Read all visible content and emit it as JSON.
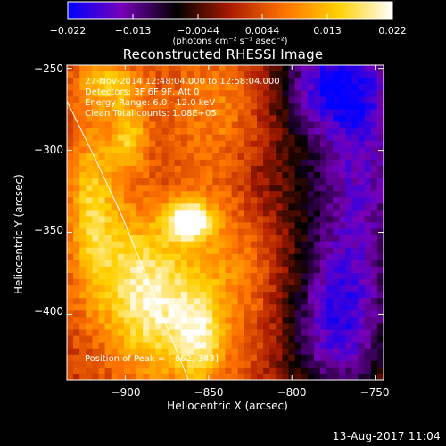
{
  "colorbar": {
    "tick_labels": [
      "−0.022",
      "−0.013",
      "−0.0044",
      "0.0044",
      "0.013",
      "0.022"
    ],
    "unit_label": "(photons cm⁻² s⁻¹ asec⁻²)",
    "range": [
      -0.022,
      0.022
    ],
    "colors": [
      "#0000ff",
      "#7700b8",
      "#000000",
      "#aa1a00",
      "#ff7300",
      "#ffd000",
      "#ffffff"
    ]
  },
  "annotation": {
    "line1": "27-Nov-2014 12:48:04.000 to 12:58:04.000",
    "line2": "Detectors: 3F 6F 9F, Att 0",
    "line3": "Energy Range: 6.0 - 12.0 keV",
    "line4": "Clean    Total counts: 1.08E+05"
  },
  "peak_label": "Position of Peak = [-862,-343]",
  "footer": {
    "date_stamp": "13-Aug-2017 11:04"
  },
  "chart_data": {
    "type": "heatmap",
    "title": "Reconstructed RHESSI Image",
    "xlabel": "Heliocentric X (arcsec)",
    "ylabel": "Heliocentric Y (arcsec)",
    "xlim": [
      -935,
      -745
    ],
    "ylim": [
      -440,
      -248
    ],
    "x_ticks": [
      -900,
      -850,
      -800,
      -750
    ],
    "x_tick_labels": [
      "−900",
      "−850",
      "−800",
      "−750"
    ],
    "y_ticks": [
      -250,
      -300,
      -350,
      -400
    ],
    "y_tick_labels": [
      "−250",
      "−300",
      "−350",
      "−400"
    ],
    "peak": {
      "x": -862,
      "y": -343
    },
    "limb_curve": [
      [
        -935,
        -270
      ],
      [
        -918,
        -305
      ],
      [
        -902,
        -340
      ],
      [
        -888,
        -375
      ],
      [
        -876,
        -405
      ],
      [
        -866,
        -430
      ],
      [
        -862,
        -440
      ]
    ],
    "sources": [
      {
        "x": -862,
        "y": -343,
        "amp": 0.022,
        "sx": 9,
        "sy": 8
      },
      {
        "x": -898,
        "y": -292,
        "amp": 0.012,
        "sx": 8,
        "sy": 14
      },
      {
        "x": -910,
        "y": -260,
        "amp": 0.011,
        "sx": 14,
        "sy": 10
      },
      {
        "x": -920,
        "y": -330,
        "amp": 0.011,
        "sx": 10,
        "sy": 35
      },
      {
        "x": -880,
        "y": -400,
        "amp": 0.013,
        "sx": 20,
        "sy": 30
      },
      {
        "x": -855,
        "y": -415,
        "amp": 0.011,
        "sx": 10,
        "sy": 20
      },
      {
        "x": -900,
        "y": -370,
        "amp": 0.009,
        "sx": 20,
        "sy": 30
      },
      {
        "x": -835,
        "y": -360,
        "amp": 0.007,
        "sx": 25,
        "sy": 45
      },
      {
        "x": -840,
        "y": -270,
        "amp": 0.006,
        "sx": 25,
        "sy": 25
      },
      {
        "x": -760,
        "y": -310,
        "amp": -0.018,
        "sx": 25,
        "sy": 70
      },
      {
        "x": -775,
        "y": -410,
        "amp": -0.016,
        "sx": 22,
        "sy": 35
      },
      {
        "x": -780,
        "y": -260,
        "amp": -0.014,
        "sx": 25,
        "sy": 20
      },
      {
        "x": -815,
        "y": -320,
        "amp": -0.006,
        "sx": 18,
        "sy": 30
      }
    ]
  }
}
